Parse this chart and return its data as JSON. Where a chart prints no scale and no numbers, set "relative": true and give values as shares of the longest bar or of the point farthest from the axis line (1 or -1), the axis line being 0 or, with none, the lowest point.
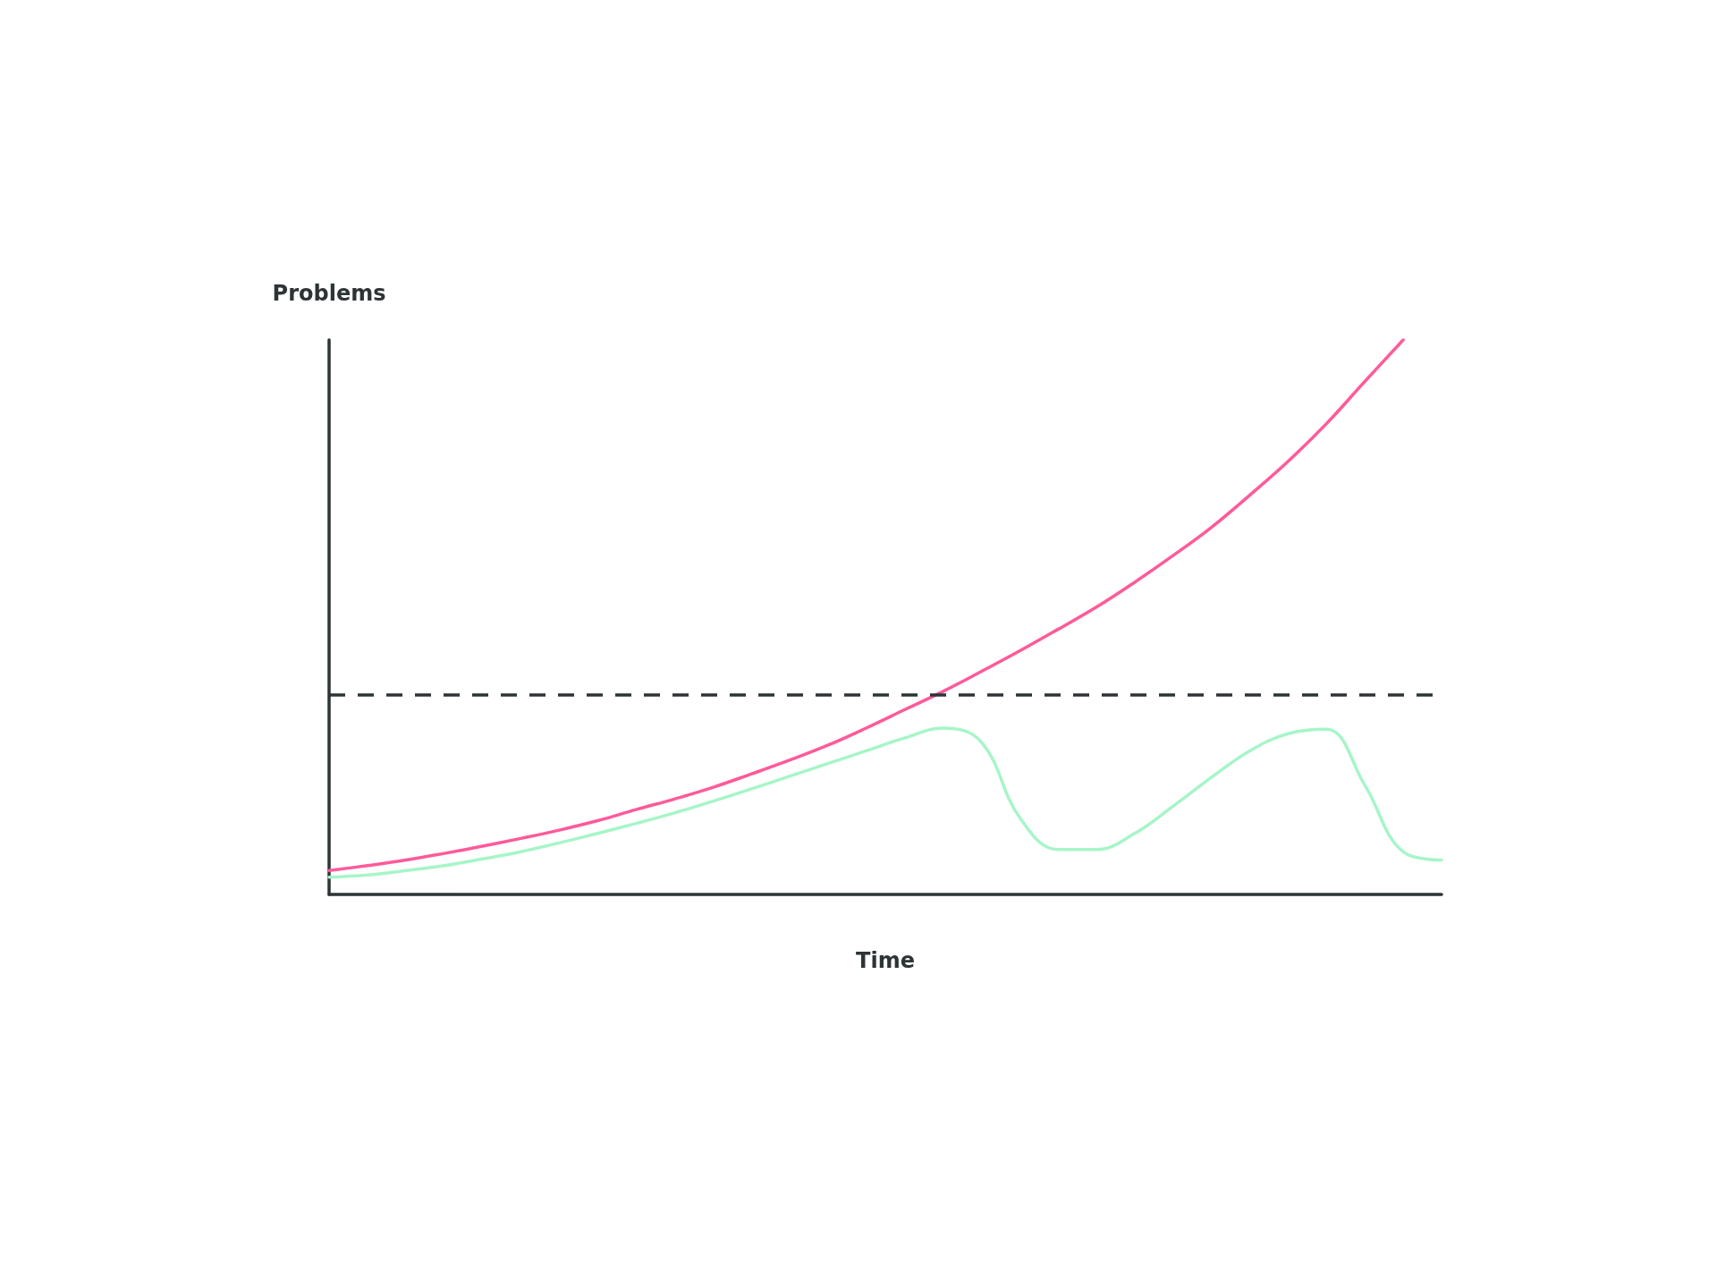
{
  "chart_data": {
    "type": "line",
    "xlabel": "Time",
    "ylabel": "Problems",
    "relative": true,
    "grid": false,
    "marker": "none",
    "line_style": "solid",
    "categories": [
      null,
      null,
      null,
      null,
      null,
      null,
      null,
      null,
      null,
      null,
      null,
      null,
      null,
      null,
      null,
      null,
      null,
      null,
      null,
      null,
      null,
      null,
      null,
      null,
      null,
      null,
      null,
      null,
      null,
      null
    ],
    "series": [
      {
        "color": "#ff5a9a",
        "values": [
          0.043,
          0.052,
          0.062,
          0.074,
          0.087,
          0.101,
          0.116,
          0.133,
          0.153,
          0.172,
          0.193,
          0.217,
          0.242,
          0.269,
          0.3,
          0.333,
          0.366,
          0.402,
          0.439,
          0.478,
          0.518,
          0.563,
          0.611,
          0.662,
          0.72,
          0.781,
          0.849,
          0.925,
          1,
          null
        ]
      },
      {
        "color": "#a6f5c8",
        "values": [
          0.031,
          0.035,
          0.043,
          0.052,
          0.064,
          0.077,
          0.093,
          0.11,
          0.128,
          0.147,
          0.168,
          0.19,
          0.213,
          0.236,
          0.259,
          0.282,
          0.3,
          0.275,
          0.139,
          0.081,
          0.081,
          0.11,
          0.159,
          0.211,
          0.259,
          0.29,
          0.298,
          0.197,
          0.077,
          0.062
        ]
      }
    ],
    "ref_lines": [
      {
        "axis": "y",
        "value": 0.362,
        "color": "#2d3436",
        "line_style": "dashed"
      }
    ]
  }
}
